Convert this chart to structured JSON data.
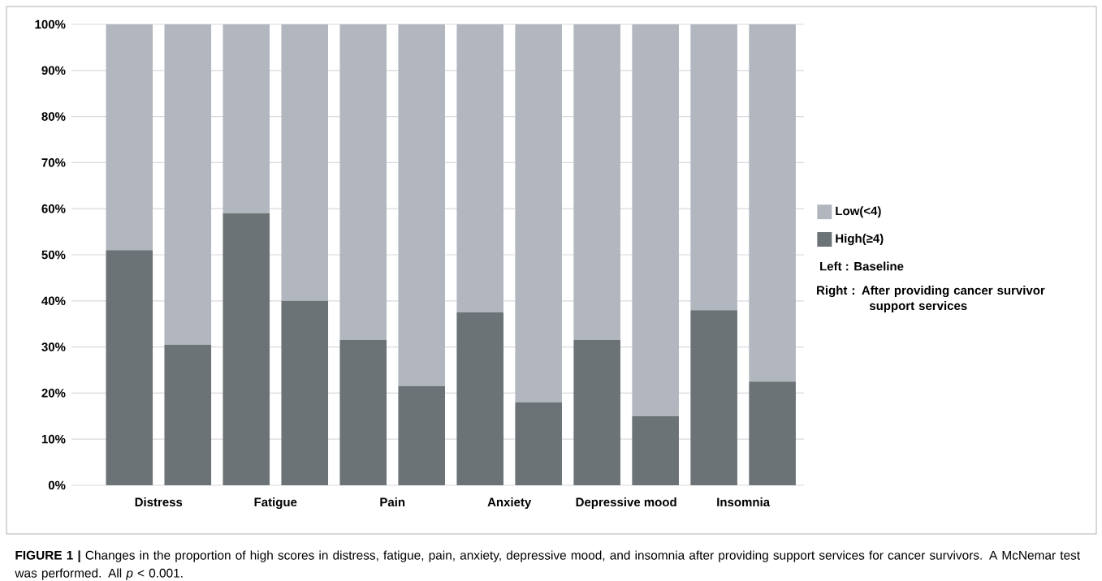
{
  "chart_data": {
    "type": "bar",
    "stacked": true,
    "categories": [
      "Distress",
      null,
      "Fatigue",
      null,
      "Pain",
      null,
      "Anxiety",
      null,
      "Depressive mood",
      null,
      "Insomnia",
      null
    ],
    "series": [
      {
        "name": "High(≥4)",
        "color": "#6c7376",
        "values": [
          51,
          30.5,
          59,
          40,
          31.5,
          21.5,
          37.5,
          18,
          31.5,
          15,
          38,
          22.5
        ]
      },
      {
        "name": "Low(<4)",
        "color": "#b2b7bf",
        "values": [
          49,
          69.5,
          41,
          60,
          68.5,
          78.5,
          62.5,
          82,
          68.5,
          85,
          62,
          77.5
        ]
      }
    ],
    "ylim": [
      0,
      100
    ],
    "yticks": [
      {
        "value": 0,
        "label": "0%"
      },
      {
        "value": 10,
        "label": "10%"
      },
      {
        "value": 20,
        "label": "20%"
      },
      {
        "value": 30,
        "label": "30%"
      },
      {
        "value": 40,
        "label": "40%"
      },
      {
        "value": 50,
        "label": "50%"
      },
      {
        "value": 60,
        "label": "60%"
      },
      {
        "value": 70,
        "label": "70%"
      },
      {
        "value": 80,
        "label": "80%"
      },
      {
        "value": 90,
        "label": "90%"
      },
      {
        "value": 100,
        "label": "100%"
      }
    ],
    "grid": "y",
    "legend": "right",
    "annotations": [
      "Left : Baseline",
      "Right : After providing cancer survivor support services",
      "**FIGURE 1 |** Changes in the proportion of high scores in distress, fatigue, pain, anxiety, depressive mood, and insomnia after providing support services for cancer survivors. A McNemar test was performed. All *p* < 0.001."
    ]
  }
}
